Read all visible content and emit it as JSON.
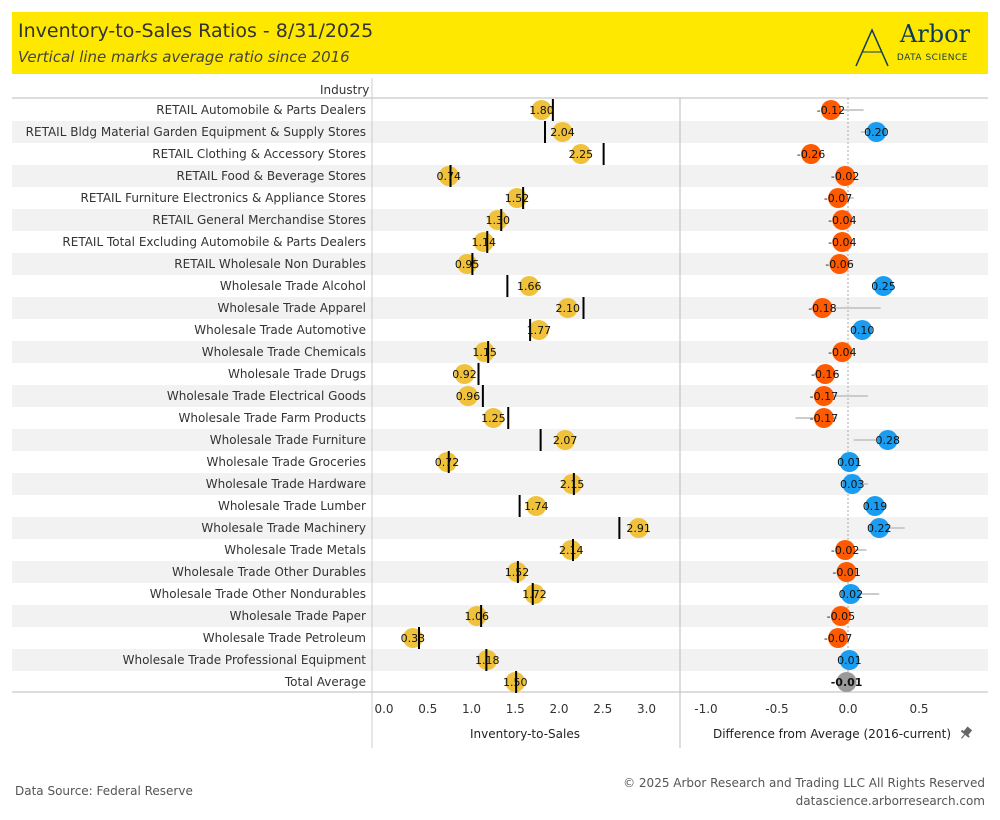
{
  "header": {
    "title": "Inventory-to-Sales Ratios - 8/31/2025",
    "subtitle": "Vertical line marks average ratio since 2016",
    "logo_text": "Arbor",
    "logo_sub": "DATA SCIENCE"
  },
  "footer": {
    "source": "Data Source: Federal Reserve",
    "copyright": "© 2025 Arbor Research and Trading LLC  All Rights Reserved",
    "website": "datascience.arborresearch.com"
  },
  "colors": {
    "banner": "#ffe800",
    "ratio_dot": "#f0c23c",
    "negative": "#ff5a00",
    "positive": "#1a9df0",
    "neutral": "#9a9a9a",
    "band": "#f2f2f2"
  },
  "chart_data": [
    {
      "type": "scatter",
      "name_header": "Industry",
      "xlabel": "Inventory-to-Sales",
      "xlim": [
        -0.1,
        3.4
      ],
      "xticks": [
        "0.0",
        "0.5",
        "1.0",
        "1.5",
        "2.0",
        "2.5",
        "3.0"
      ],
      "categories": [
        "RETAIL Automobile & Parts Dealers",
        "RETAIL Bldg Material Garden Equipment & Supply Stores",
        "RETAIL Clothing & Accessory Stores",
        "RETAIL Food & Beverage Stores",
        "RETAIL Furniture Electronics & Appliance Stores",
        "RETAIL General Merchandise Stores",
        "RETAIL Total Excluding Automobile & Parts Dealers",
        "RETAIL Wholesale Non Durables",
        "Wholesale Trade Alcohol",
        "Wholesale Trade Apparel",
        "Wholesale Trade Automotive",
        "Wholesale Trade Chemicals",
        "Wholesale Trade Drugs",
        "Wholesale Trade Electrical Goods",
        "Wholesale Trade Farm Products",
        "Wholesale Trade Furniture",
        "Wholesale Trade Groceries",
        "Wholesale Trade Hardware",
        "Wholesale Trade Lumber",
        "Wholesale Trade Machinery",
        "Wholesale Trade Metals",
        "Wholesale Trade Other Durables",
        "Wholesale Trade Other Nondurables",
        "Wholesale Trade Paper",
        "Wholesale Trade Petroleum",
        "Wholesale Trade Professional Equipment",
        "Total Average"
      ],
      "values": [
        1.8,
        2.04,
        2.25,
        0.74,
        1.52,
        1.3,
        1.14,
        0.95,
        1.66,
        2.1,
        1.77,
        1.15,
        0.92,
        0.96,
        1.25,
        2.07,
        0.72,
        2.15,
        1.74,
        2.91,
        2.14,
        1.52,
        1.72,
        1.06,
        0.33,
        1.18,
        1.5
      ],
      "labels": [
        "1.80",
        "2.04",
        "2.25",
        "0.74",
        "1.52",
        "1.30",
        "1.14",
        "0.95",
        "1.66",
        "2.10",
        "1.77",
        "1.15",
        "0.92",
        "0.96",
        "1.25",
        "2.07",
        "0.72",
        "2.15",
        "1.74",
        "2.91",
        "2.14",
        "1.52",
        "1.72",
        "1.06",
        "0.33",
        "1.18",
        "1.50"
      ],
      "average_ratio": [
        1.93,
        1.84,
        2.51,
        0.76,
        1.59,
        1.34,
        1.18,
        1.01,
        1.41,
        2.28,
        1.67,
        1.19,
        1.08,
        1.13,
        1.42,
        1.79,
        0.74,
        2.17,
        1.55,
        2.69,
        2.16,
        1.53,
        1.7,
        1.11,
        0.4,
        1.17,
        1.51
      ]
    },
    {
      "type": "scatter",
      "xlabel": "Difference from Average (2016-current)",
      "xlim": [
        -1.2,
        0.95
      ],
      "xticks": [
        "-1.0",
        "-0.5",
        "0.0",
        "0.5"
      ],
      "values": [
        -0.12,
        0.2,
        -0.26,
        -0.02,
        -0.07,
        -0.04,
        -0.04,
        -0.06,
        0.25,
        -0.18,
        0.1,
        -0.04,
        -0.16,
        -0.17,
        -0.17,
        0.28,
        0.01,
        0.03,
        0.19,
        0.22,
        -0.02,
        -0.01,
        0.02,
        -0.05,
        -0.07,
        0.01,
        -0.01
      ],
      "labels": [
        "-0.12",
        "0.20",
        "-0.26",
        "-0.02",
        "-0.07",
        "-0.04",
        "-0.04",
        "-0.06",
        "0.25",
        "-0.18",
        "0.10",
        "-0.04",
        "-0.16",
        "-0.17",
        "-0.17",
        "0.28",
        "0.01",
        "0.03",
        "0.19",
        "0.22",
        "-0.02",
        "-0.01",
        "0.02",
        "-0.05",
        "-0.07",
        "0.01",
        "-0.01"
      ],
      "range_low": [
        -0.14,
        0.09,
        -0.26,
        -0.04,
        -0.09,
        -0.05,
        -0.05,
        -0.1,
        0.25,
        -0.26,
        0.1,
        -0.05,
        -0.24,
        -0.2,
        -0.37,
        0.04,
        0.01,
        -0.04,
        0.19,
        0.16,
        -0.05,
        -0.02,
        -0.01,
        -0.08,
        -0.09,
        0.01,
        -0.01
      ],
      "range_high": [
        0.11,
        0.2,
        -0.22,
        0.02,
        0.04,
        0.01,
        0.02,
        0.04,
        0.25,
        0.23,
        0.1,
        0.04,
        -0.07,
        0.14,
        -0.08,
        0.28,
        0.01,
        0.14,
        0.19,
        0.4,
        0.13,
        0.06,
        0.22,
        -0.01,
        -0.02,
        0.01,
        -0.01
      ]
    }
  ]
}
